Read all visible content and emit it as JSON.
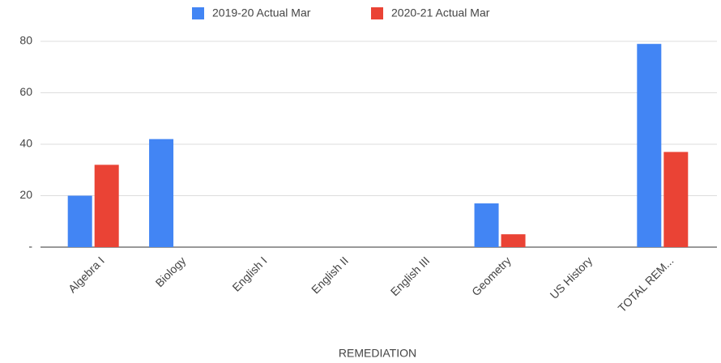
{
  "chart_data": {
    "type": "bar",
    "x_label": "REMEDIATION",
    "categories": [
      "Algebra I",
      "Biology",
      "English I",
      "English II",
      "English III",
      "Geometry",
      "US History",
      "TOTAL REM..."
    ],
    "series": [
      {
        "name": "2019-20 Actual Mar",
        "color": "#4285f4",
        "values": [
          20,
          42,
          0,
          0,
          0,
          17,
          0,
          79
        ]
      },
      {
        "name": "2020-21 Actual Mar",
        "color": "#ea4335",
        "values": [
          32,
          0,
          0,
          0,
          0,
          5,
          0,
          37
        ]
      }
    ],
    "ylim": [
      0,
      80
    ],
    "yticks": [
      {
        "value": 0,
        "label": "-"
      },
      20,
      40,
      60,
      80
    ],
    "grid": true,
    "legend": "top"
  }
}
